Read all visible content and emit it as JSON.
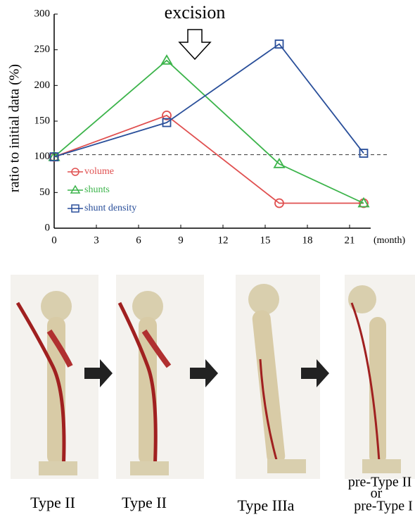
{
  "chart_data": {
    "type": "line",
    "annotation": "excision",
    "annotation_x": 10,
    "ylabel": "ratio to initial data (%)",
    "xlabel": "(month)",
    "x": [
      0,
      8,
      16,
      22
    ],
    "series": [
      {
        "name": "volume",
        "color": "#e05050",
        "marker": "circle",
        "values": [
          100,
          158,
          35,
          35
        ]
      },
      {
        "name": "shunts",
        "color": "#3cb44b",
        "marker": "triangle",
        "values": [
          100,
          235,
          90,
          35
        ]
      },
      {
        "name": "shunt density",
        "color": "#2a4f9a",
        "marker": "square",
        "values": [
          100,
          148,
          258,
          105
        ]
      }
    ],
    "reference_line": 103,
    "xlim": [
      0,
      22.5
    ],
    "xticks": [
      0,
      3,
      6,
      9,
      12,
      15,
      18,
      21
    ],
    "ylim": [
      0,
      300
    ],
    "yticks": [
      0,
      50,
      100,
      150,
      200,
      250,
      300
    ],
    "legend": "bottom-left"
  },
  "panels": [
    {
      "label": "Type II"
    },
    {
      "label": "Type II"
    },
    {
      "label": "Type IIIa"
    },
    {
      "label": [
        "pre-Type II",
        "or",
        "pre-Type I"
      ]
    }
  ]
}
